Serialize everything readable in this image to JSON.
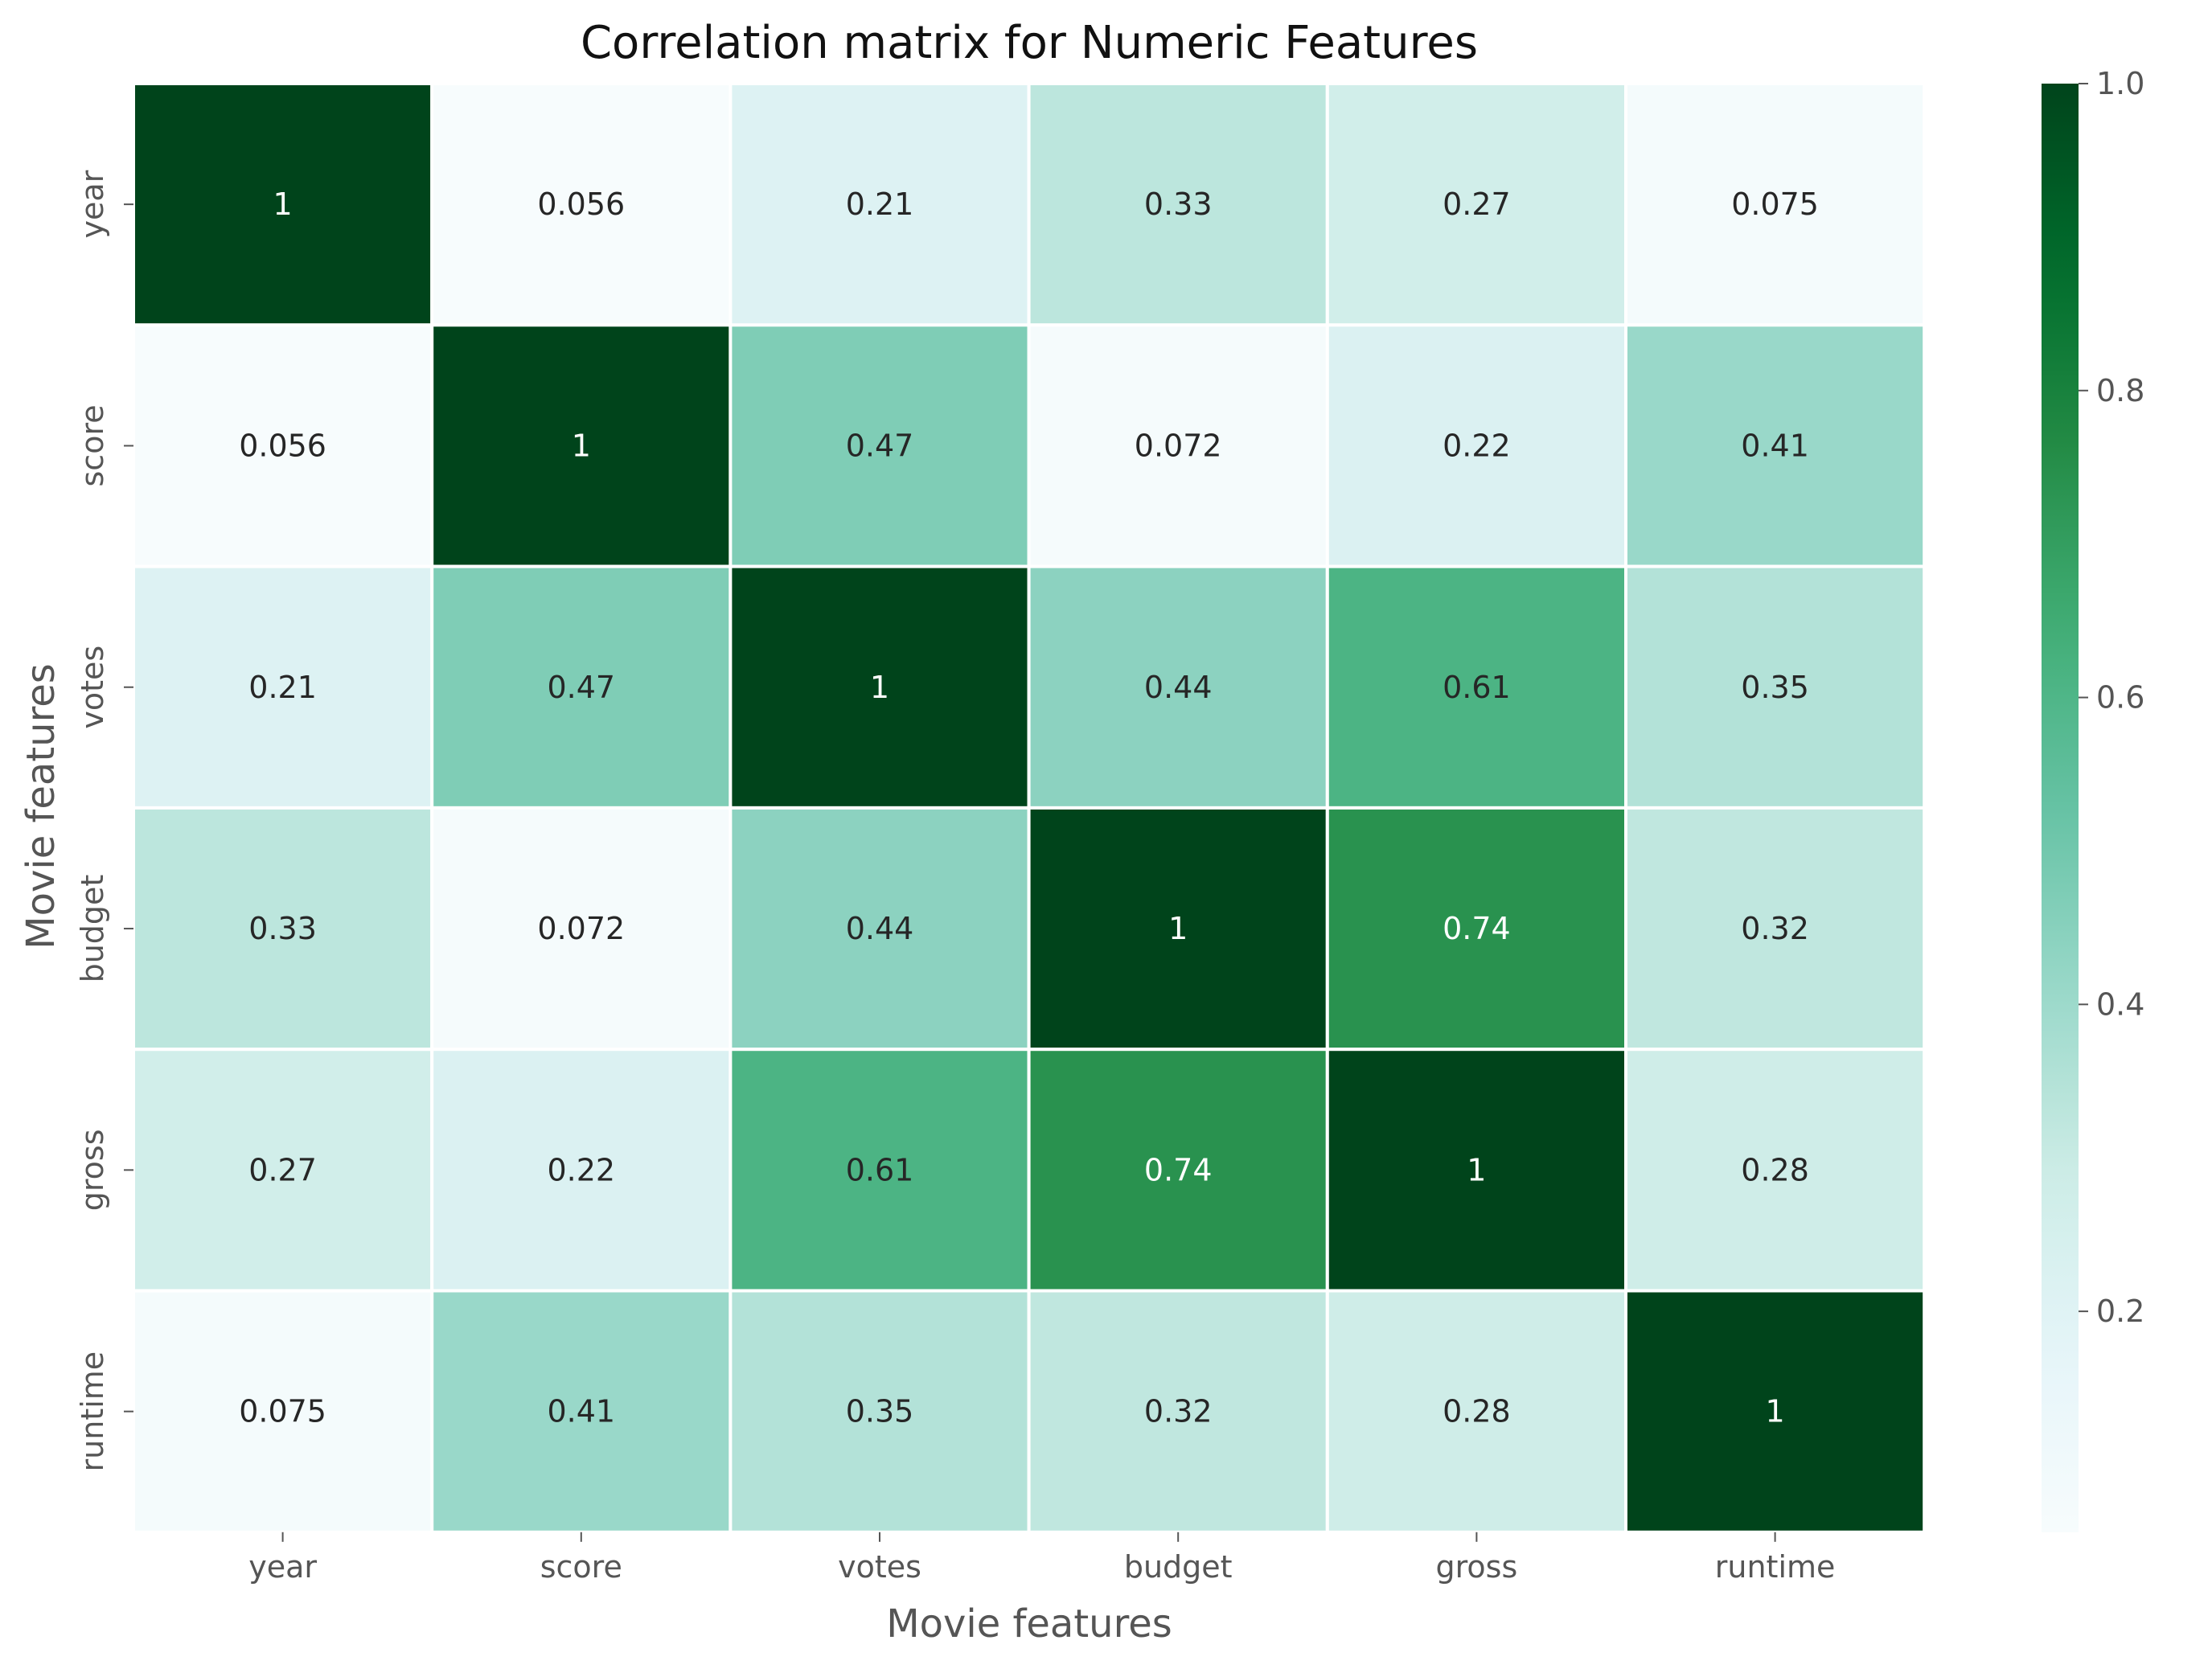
{
  "chart_data": {
    "type": "heatmap",
    "title": "Correlation matrix for Numeric Features",
    "xlabel": "Movie features",
    "ylabel": "Movie features",
    "x_categories": [
      "year",
      "score",
      "votes",
      "budget",
      "gross",
      "runtime"
    ],
    "y_categories": [
      "year",
      "score",
      "votes",
      "budget",
      "gross",
      "runtime"
    ],
    "matrix": [
      [
        1,
        0.056,
        0.21,
        0.33,
        0.27,
        0.075
      ],
      [
        0.056,
        1,
        0.47,
        0.072,
        0.22,
        0.41
      ],
      [
        0.21,
        0.47,
        1,
        0.44,
        0.61,
        0.35
      ],
      [
        0.33,
        0.072,
        0.44,
        1,
        0.74,
        0.32
      ],
      [
        0.27,
        0.22,
        0.61,
        0.74,
        1,
        0.28
      ],
      [
        0.075,
        0.41,
        0.35,
        0.32,
        0.28,
        1
      ]
    ],
    "cell_labels": [
      [
        "1",
        "0.056",
        "0.21",
        "0.33",
        "0.27",
        "0.075"
      ],
      [
        "0.056",
        "1",
        "0.47",
        "0.072",
        "0.22",
        "0.41"
      ],
      [
        "0.21",
        "0.47",
        "1",
        "0.44",
        "0.61",
        "0.35"
      ],
      [
        "0.33",
        "0.072",
        "0.44",
        "1",
        "0.74",
        "0.32"
      ],
      [
        "0.27",
        "0.22",
        "0.61",
        "0.74",
        "1",
        "0.28"
      ],
      [
        "0.075",
        "0.41",
        "0.35",
        "0.32",
        "0.28",
        "1"
      ]
    ],
    "colorbar": {
      "colormap": "BuGn",
      "range": [
        0.056,
        1.0
      ],
      "ticks": [
        0.2,
        0.4,
        0.6,
        0.8,
        1.0
      ],
      "tick_labels": [
        "0.2",
        "0.4",
        "0.6",
        "0.8",
        "1.0"
      ]
    },
    "cell_border_color": "#ffffff",
    "colors": {
      "low": "#f7fcfd",
      "high": "#00441b"
    }
  }
}
